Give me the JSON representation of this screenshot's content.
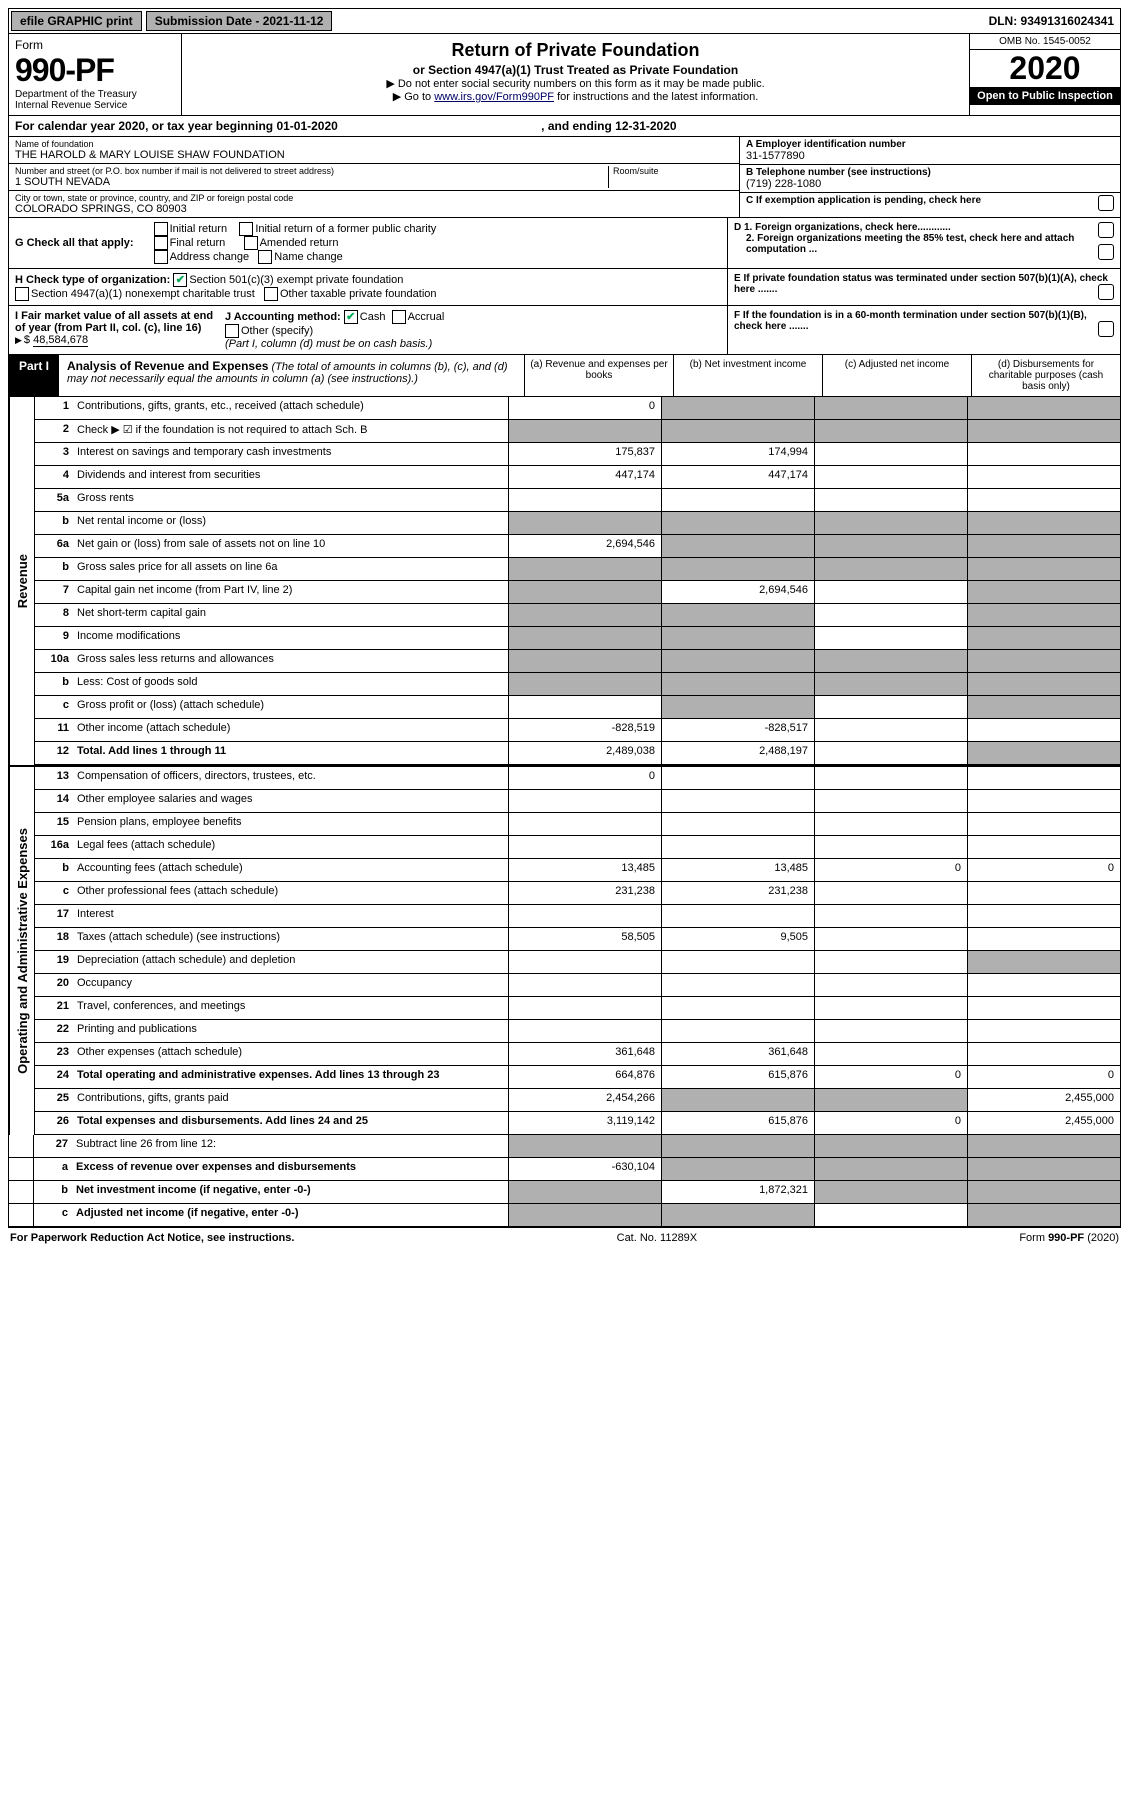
{
  "top": {
    "efile": "efile GRAPHIC print",
    "submission": "Submission Date - 2021-11-12",
    "dln": "DLN: 93491316024341"
  },
  "header": {
    "form": "Form",
    "number": "990-PF",
    "dept": "Department of the Treasury",
    "irs": "Internal Revenue Service",
    "title": "Return of Private Foundation",
    "subtitle": "or Section 4947(a)(1) Trust Treated as Private Foundation",
    "note1": "▶ Do not enter social security numbers on this form as it may be made public.",
    "note2_a": "▶ Go to ",
    "note2_link": "www.irs.gov/Form990PF",
    "note2_b": " for instructions and the latest information.",
    "omb": "OMB No. 1545-0052",
    "year": "2020",
    "open": "Open to Public Inspection"
  },
  "calyear": "For calendar year 2020, or tax year beginning 01-01-2020",
  "calyear_end": ", and ending 12-31-2020",
  "name_lbl": "Name of foundation",
  "name": "THE HAROLD & MARY LOUISE SHAW FOUNDATION",
  "addr_lbl": "Number and street (or P.O. box number if mail is not delivered to street address)",
  "addr": "1 SOUTH NEVADA",
  "room_lbl": "Room/suite",
  "city_lbl": "City or town, state or province, country, and ZIP or foreign postal code",
  "city": "COLORADO SPRINGS, CO  80903",
  "ein_lbl": "A Employer identification number",
  "ein": "31-1577890",
  "phone_lbl": "B Telephone number (see instructions)",
  "phone": "(719) 228-1080",
  "c_lbl": "C If exemption application is pending, check here",
  "g_lbl": "G Check all that apply:",
  "g_opts": {
    "initial": "Initial return",
    "initial_former": "Initial return of a former public charity",
    "final": "Final return",
    "amended": "Amended return",
    "addr_change": "Address change",
    "name_change": "Name change"
  },
  "d1": "D 1. Foreign organizations, check here............",
  "d2": "2. Foreign organizations meeting the 85% test, check here and attach computation ...",
  "h_lbl": "H Check type of organization:",
  "h_501c3": "Section 501(c)(3) exempt private foundation",
  "h_4947": "Section 4947(a)(1) nonexempt charitable trust",
  "h_other": "Other taxable private foundation",
  "e_lbl": "E  If private foundation status was terminated under section 507(b)(1)(A), check here .......",
  "i_lbl": "I Fair market value of all assets at end of year (from Part II, col. (c), line 16)",
  "i_val": "48,584,678",
  "j_lbl": "J Accounting method:",
  "j_cash": "Cash",
  "j_accrual": "Accrual",
  "j_other": "Other (specify)",
  "j_note": "(Part I, column (d) must be on cash basis.)",
  "f_lbl": "F  If the foundation is in a 60-month termination under section 507(b)(1)(B), check here .......",
  "part1": {
    "num": "Part I",
    "title": "Analysis of Revenue and Expenses",
    "desc": "(The total of amounts in columns (b), (c), and (d) may not necessarily equal the amounts in column (a) (see instructions).)",
    "col_a": "(a) Revenue and expenses per books",
    "col_b": "(b) Net investment income",
    "col_c": "(c) Adjusted net income",
    "col_d": "(d) Disbursements for charitable purposes (cash basis only)"
  },
  "revenue_label": "Revenue",
  "expenses_label": "Operating and Administrative Expenses",
  "lines": {
    "l1": {
      "n": "1",
      "d": "Contributions, gifts, grants, etc., received (attach schedule)",
      "a": "0"
    },
    "l2": {
      "n": "2",
      "d": "Check ▶ ☑ if the foundation is not required to attach Sch. B"
    },
    "l3": {
      "n": "3",
      "d": "Interest on savings and temporary cash investments",
      "a": "175,837",
      "b": "174,994"
    },
    "l4": {
      "n": "4",
      "d": "Dividends and interest from securities",
      "a": "447,174",
      "b": "447,174"
    },
    "l5a": {
      "n": "5a",
      "d": "Gross rents"
    },
    "l5b": {
      "n": "b",
      "d": "Net rental income or (loss)"
    },
    "l6a": {
      "n": "6a",
      "d": "Net gain or (loss) from sale of assets not on line 10",
      "a": "2,694,546"
    },
    "l6b": {
      "n": "b",
      "d": "Gross sales price for all assets on line 6a"
    },
    "l7": {
      "n": "7",
      "d": "Capital gain net income (from Part IV, line 2)",
      "b": "2,694,546"
    },
    "l8": {
      "n": "8",
      "d": "Net short-term capital gain"
    },
    "l9": {
      "n": "9",
      "d": "Income modifications"
    },
    "l10a": {
      "n": "10a",
      "d": "Gross sales less returns and allowances"
    },
    "l10b": {
      "n": "b",
      "d": "Less: Cost of goods sold"
    },
    "l10c": {
      "n": "c",
      "d": "Gross profit or (loss) (attach schedule)"
    },
    "l11": {
      "n": "11",
      "d": "Other income (attach schedule)",
      "a": "-828,519",
      "b": "-828,517"
    },
    "l12": {
      "n": "12",
      "d": "Total. Add lines 1 through 11",
      "a": "2,489,038",
      "b": "2,488,197"
    },
    "l13": {
      "n": "13",
      "d": "Compensation of officers, directors, trustees, etc.",
      "a": "0"
    },
    "l14": {
      "n": "14",
      "d": "Other employee salaries and wages"
    },
    "l15": {
      "n": "15",
      "d": "Pension plans, employee benefits"
    },
    "l16a": {
      "n": "16a",
      "d": "Legal fees (attach schedule)"
    },
    "l16b": {
      "n": "b",
      "d": "Accounting fees (attach schedule)",
      "a": "13,485",
      "b": "13,485",
      "c": "0",
      "dd": "0"
    },
    "l16c": {
      "n": "c",
      "d": "Other professional fees (attach schedule)",
      "a": "231,238",
      "b": "231,238"
    },
    "l17": {
      "n": "17",
      "d": "Interest"
    },
    "l18": {
      "n": "18",
      "d": "Taxes (attach schedule) (see instructions)",
      "a": "58,505",
      "b": "9,505"
    },
    "l19": {
      "n": "19",
      "d": "Depreciation (attach schedule) and depletion"
    },
    "l20": {
      "n": "20",
      "d": "Occupancy"
    },
    "l21": {
      "n": "21",
      "d": "Travel, conferences, and meetings"
    },
    "l22": {
      "n": "22",
      "d": "Printing and publications"
    },
    "l23": {
      "n": "23",
      "d": "Other expenses (attach schedule)",
      "a": "361,648",
      "b": "361,648"
    },
    "l24": {
      "n": "24",
      "d": "Total operating and administrative expenses. Add lines 13 through 23",
      "a": "664,876",
      "b": "615,876",
      "c": "0",
      "dd": "0"
    },
    "l25": {
      "n": "25",
      "d": "Contributions, gifts, grants paid",
      "a": "2,454,266",
      "dd": "2,455,000"
    },
    "l26": {
      "n": "26",
      "d": "Total expenses and disbursements. Add lines 24 and 25",
      "a": "3,119,142",
      "b": "615,876",
      "c": "0",
      "dd": "2,455,000"
    },
    "l27": {
      "n": "27",
      "d": "Subtract line 26 from line 12:"
    },
    "l27a": {
      "n": "a",
      "d": "Excess of revenue over expenses and disbursements",
      "a": "-630,104"
    },
    "l27b": {
      "n": "b",
      "d": "Net investment income (if negative, enter -0-)",
      "b": "1,872,321"
    },
    "l27c": {
      "n": "c",
      "d": "Adjusted net income (if negative, enter -0-)"
    }
  },
  "footer": {
    "left": "For Paperwork Reduction Act Notice, see instructions.",
    "mid": "Cat. No. 11289X",
    "right": "Form 990-PF (2020)"
  }
}
